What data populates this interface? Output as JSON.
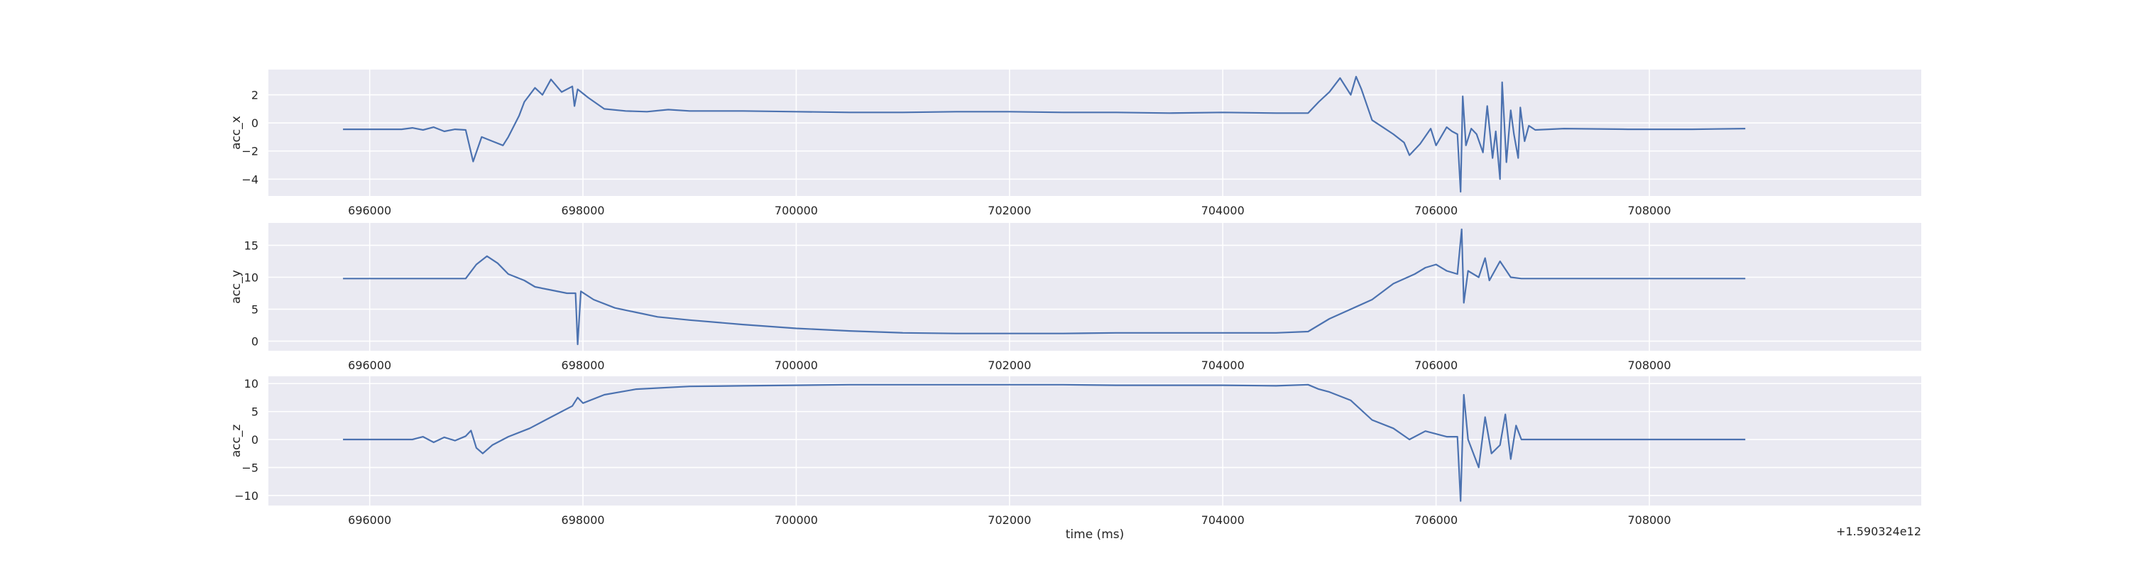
{
  "chart_data": [
    {
      "type": "line",
      "ylabel": "acc_x",
      "xlabel": "time (ms)",
      "x_offset_label": "+1.590324e12",
      "xlim": [
        695050,
        710550
      ],
      "ylim": [
        -5.2,
        3.8
      ],
      "grid": true,
      "xticks": [
        696000,
        698000,
        700000,
        702000,
        704000,
        706000,
        708000
      ],
      "xtick_labels": [
        "696000",
        "698000",
        "700000",
        "702000",
        "704000",
        "706000",
        "708000"
      ],
      "yticks": [
        -4,
        -2,
        0,
        2
      ],
      "ytick_labels": [
        "−4",
        "−2",
        "0",
        "2"
      ],
      "series": [
        {
          "color": "#4c72b0",
          "points": [
            [
              695750,
              -0.45
            ],
            [
              696000,
              -0.45
            ],
            [
              696300,
              -0.45
            ],
            [
              696400,
              -0.35
            ],
            [
              696500,
              -0.5
            ],
            [
              696600,
              -0.3
            ],
            [
              696700,
              -0.6
            ],
            [
              696800,
              -0.45
            ],
            [
              696900,
              -0.5
            ],
            [
              696970,
              -2.75
            ],
            [
              697050,
              -1.0
            ],
            [
              697150,
              -1.3
            ],
            [
              697250,
              -1.6
            ],
            [
              697300,
              -1.0
            ],
            [
              697400,
              0.5
            ],
            [
              697450,
              1.5
            ],
            [
              697550,
              2.5
            ],
            [
              697620,
              2.0
            ],
            [
              697700,
              3.1
            ],
            [
              697800,
              2.2
            ],
            [
              697900,
              2.6
            ],
            [
              697920,
              1.2
            ],
            [
              697950,
              2.4
            ],
            [
              698050,
              1.8
            ],
            [
              698200,
              1.0
            ],
            [
              698400,
              0.85
            ],
            [
              698600,
              0.8
            ],
            [
              698800,
              0.95
            ],
            [
              699000,
              0.85
            ],
            [
              699500,
              0.85
            ],
            [
              700000,
              0.8
            ],
            [
              700500,
              0.75
            ],
            [
              701000,
              0.75
            ],
            [
              701500,
              0.8
            ],
            [
              702000,
              0.8
            ],
            [
              702500,
              0.75
            ],
            [
              703000,
              0.75
            ],
            [
              703500,
              0.7
            ],
            [
              704000,
              0.75
            ],
            [
              704500,
              0.7
            ],
            [
              704800,
              0.7
            ],
            [
              704900,
              1.5
            ],
            [
              705000,
              2.2
            ],
            [
              705100,
              3.2
            ],
            [
              705200,
              2.0
            ],
            [
              705250,
              3.3
            ],
            [
              705300,
              2.4
            ],
            [
              705400,
              0.2
            ],
            [
              705500,
              -0.3
            ],
            [
              705600,
              -0.8
            ],
            [
              705700,
              -1.4
            ],
            [
              705750,
              -2.3
            ],
            [
              705850,
              -1.5
            ],
            [
              705950,
              -0.4
            ],
            [
              706000,
              -1.6
            ],
            [
              706100,
              -0.3
            ],
            [
              706150,
              -0.6
            ],
            [
              706200,
              -0.8
            ],
            [
              706230,
              -4.9
            ],
            [
              706250,
              1.9
            ],
            [
              706280,
              -1.6
            ],
            [
              706330,
              -0.4
            ],
            [
              706380,
              -0.8
            ],
            [
              706440,
              -2.1
            ],
            [
              706480,
              1.2
            ],
            [
              706530,
              -2.5
            ],
            [
              706560,
              -0.6
            ],
            [
              706600,
              -4.0
            ],
            [
              706620,
              2.9
            ],
            [
              706660,
              -2.8
            ],
            [
              706700,
              0.9
            ],
            [
              706730,
              -0.8
            ],
            [
              706770,
              -2.5
            ],
            [
              706790,
              1.1
            ],
            [
              706830,
              -1.3
            ],
            [
              706870,
              -0.2
            ],
            [
              706930,
              -0.5
            ],
            [
              707200,
              -0.4
            ],
            [
              707800,
              -0.45
            ],
            [
              708400,
              -0.45
            ],
            [
              708900,
              -0.4
            ]
          ]
        }
      ]
    },
    {
      "type": "line",
      "ylabel": "acc_y",
      "xlabel": "time (ms)",
      "x_offset_label": "+1.590324e12",
      "xlim": [
        695050,
        710550
      ],
      "ylim": [
        -1.5,
        18.5
      ],
      "grid": true,
      "xticks": [
        696000,
        698000,
        700000,
        702000,
        704000,
        706000,
        708000
      ],
      "xtick_labels": [
        "696000",
        "698000",
        "700000",
        "702000",
        "704000",
        "706000",
        "708000"
      ],
      "yticks": [
        0,
        5,
        10,
        15
      ],
      "ytick_labels": [
        "0",
        "5",
        "10",
        "15"
      ],
      "series": [
        {
          "color": "#4c72b0",
          "points": [
            [
              695750,
              9.8
            ],
            [
              696500,
              9.8
            ],
            [
              696900,
              9.8
            ],
            [
              697000,
              12.0
            ],
            [
              697100,
              13.3
            ],
            [
              697200,
              12.2
            ],
            [
              697300,
              10.5
            ],
            [
              697450,
              9.5
            ],
            [
              697550,
              8.5
            ],
            [
              697700,
              8.0
            ],
            [
              697850,
              7.5
            ],
            [
              697930,
              7.5
            ],
            [
              697950,
              -0.5
            ],
            [
              697980,
              7.8
            ],
            [
              698100,
              6.5
            ],
            [
              698300,
              5.2
            ],
            [
              698500,
              4.5
            ],
            [
              698700,
              3.8
            ],
            [
              699000,
              3.3
            ],
            [
              699500,
              2.6
            ],
            [
              700000,
              2.0
            ],
            [
              700500,
              1.6
            ],
            [
              701000,
              1.3
            ],
            [
              701500,
              1.2
            ],
            [
              702000,
              1.2
            ],
            [
              702500,
              1.2
            ],
            [
              703000,
              1.3
            ],
            [
              703500,
              1.3
            ],
            [
              704000,
              1.3
            ],
            [
              704500,
              1.3
            ],
            [
              704800,
              1.5
            ],
            [
              704900,
              2.5
            ],
            [
              705000,
              3.5
            ],
            [
              705200,
              5.0
            ],
            [
              705400,
              6.5
            ],
            [
              705600,
              9.0
            ],
            [
              705800,
              10.5
            ],
            [
              705900,
              11.5
            ],
            [
              706000,
              12.0
            ],
            [
              706100,
              11.0
            ],
            [
              706200,
              10.5
            ],
            [
              706240,
              17.5
            ],
            [
              706260,
              6.0
            ],
            [
              706300,
              11.0
            ],
            [
              706400,
              10.0
            ],
            [
              706460,
              13.0
            ],
            [
              706500,
              9.5
            ],
            [
              706600,
              12.5
            ],
            [
              706700,
              10.0
            ],
            [
              706800,
              9.8
            ],
            [
              707500,
              9.8
            ],
            [
              708900,
              9.8
            ]
          ]
        }
      ]
    },
    {
      "type": "line",
      "ylabel": "acc_z",
      "xlabel": "time (ms)",
      "x_offset_label": "+1.590324e12",
      "xlim": [
        695050,
        710550
      ],
      "ylim": [
        -11.8,
        11.3
      ],
      "grid": true,
      "xticks": [
        696000,
        698000,
        700000,
        702000,
        704000,
        706000,
        708000
      ],
      "xtick_labels": [
        "696000",
        "698000",
        "700000",
        "702000",
        "704000",
        "706000",
        "708000"
      ],
      "yticks": [
        -10,
        -5,
        0,
        5,
        10
      ],
      "ytick_labels": [
        "−10",
        "−5",
        "0",
        "5",
        "10"
      ],
      "series": [
        {
          "color": "#4c72b0",
          "points": [
            [
              695750,
              0.0
            ],
            [
              696000,
              0.0
            ],
            [
              696400,
              0.0
            ],
            [
              696500,
              0.5
            ],
            [
              696600,
              -0.5
            ],
            [
              696700,
              0.4
            ],
            [
              696800,
              -0.2
            ],
            [
              696900,
              0.6
            ],
            [
              696950,
              1.6
            ],
            [
              697000,
              -1.5
            ],
            [
              697060,
              -2.5
            ],
            [
              697150,
              -1.0
            ],
            [
              697300,
              0.5
            ],
            [
              697500,
              2.0
            ],
            [
              697700,
              4.0
            ],
            [
              697900,
              6.0
            ],
            [
              697950,
              7.5
            ],
            [
              698000,
              6.5
            ],
            [
              698200,
              8.0
            ],
            [
              698500,
              9.0
            ],
            [
              699000,
              9.5
            ],
            [
              699500,
              9.6
            ],
            [
              700000,
              9.7
            ],
            [
              700500,
              9.8
            ],
            [
              701000,
              9.8
            ],
            [
              701500,
              9.8
            ],
            [
              702000,
              9.8
            ],
            [
              702500,
              9.8
            ],
            [
              703000,
              9.7
            ],
            [
              703500,
              9.7
            ],
            [
              704000,
              9.7
            ],
            [
              704500,
              9.6
            ],
            [
              704800,
              9.8
            ],
            [
              704900,
              9.0
            ],
            [
              705000,
              8.5
            ],
            [
              705200,
              7.0
            ],
            [
              705400,
              3.5
            ],
            [
              705600,
              2.0
            ],
            [
              705750,
              0.0
            ],
            [
              705900,
              1.5
            ],
            [
              706100,
              0.5
            ],
            [
              706200,
              0.5
            ],
            [
              706230,
              -11.0
            ],
            [
              706260,
              8.0
            ],
            [
              706300,
              0.0
            ],
            [
              706400,
              -5.0
            ],
            [
              706460,
              4.0
            ],
            [
              706520,
              -2.5
            ],
            [
              706600,
              -1.0
            ],
            [
              706650,
              4.5
            ],
            [
              706700,
              -3.5
            ],
            [
              706750,
              2.5
            ],
            [
              706800,
              0.0
            ],
            [
              706900,
              0.0
            ],
            [
              707500,
              0.0
            ],
            [
              708900,
              0.0
            ]
          ]
        }
      ]
    }
  ]
}
